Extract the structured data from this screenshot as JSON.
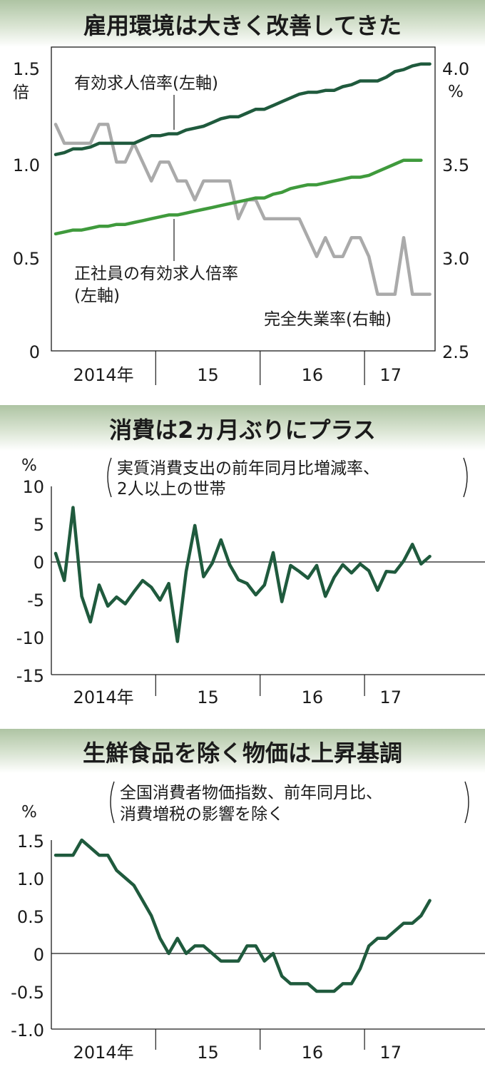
{
  "colors": {
    "dark_green": "#1f5a3d",
    "green": "#3f9a3c",
    "gray": "#aaaaaa",
    "header_bg": "#c9d7bf",
    "text": "#1b1b1b"
  },
  "chart_data": [
    {
      "type": "line",
      "title": "雇用環境は大きく改善してきた",
      "x_tick_labels": [
        "2014年",
        "15",
        "16",
        "17"
      ],
      "y_left": {
        "ticks": [
          "1.5",
          "1.0",
          "0.5",
          "0"
        ],
        "unit": "倍",
        "ylim": [
          0,
          1.5
        ]
      },
      "y_right": {
        "ticks": [
          "4.0",
          "3.5",
          "3.0",
          "2.5"
        ],
        "unit": "%",
        "ylim": [
          2.5,
          4.0
        ]
      },
      "x_start": "2014-01",
      "series": [
        {
          "name": "有効求人倍率(左軸)",
          "axis": "left",
          "values": [
            1.04,
            1.05,
            1.07,
            1.07,
            1.08,
            1.1,
            1.1,
            1.1,
            1.1,
            1.1,
            1.12,
            1.14,
            1.14,
            1.15,
            1.15,
            1.17,
            1.18,
            1.19,
            1.21,
            1.23,
            1.24,
            1.24,
            1.26,
            1.28,
            1.28,
            1.3,
            1.32,
            1.34,
            1.36,
            1.37,
            1.37,
            1.38,
            1.38,
            1.4,
            1.41,
            1.43,
            1.43,
            1.43,
            1.45,
            1.48,
            1.49,
            1.51,
            1.52,
            1.52
          ]
        },
        {
          "name": "正社員の有効求人倍率(左軸)",
          "axis": "left",
          "values": [
            0.62,
            0.63,
            0.64,
            0.64,
            0.65,
            0.66,
            0.66,
            0.67,
            0.67,
            0.68,
            0.69,
            0.7,
            0.71,
            0.72,
            0.72,
            0.73,
            0.74,
            0.75,
            0.76,
            0.77,
            0.78,
            0.79,
            0.8,
            0.81,
            0.81,
            0.83,
            0.84,
            0.86,
            0.87,
            0.88,
            0.88,
            0.89,
            0.9,
            0.91,
            0.92,
            0.92,
            0.93,
            0.95,
            0.97,
            0.99,
            1.01,
            1.01,
            1.01
          ]
        },
        {
          "name": "完全失業率(右軸)",
          "axis": "right",
          "values": [
            3.7,
            3.6,
            3.6,
            3.6,
            3.6,
            3.7,
            3.7,
            3.5,
            3.5,
            3.6,
            3.5,
            3.4,
            3.5,
            3.5,
            3.4,
            3.4,
            3.3,
            3.4,
            3.4,
            3.4,
            3.4,
            3.2,
            3.3,
            3.3,
            3.2,
            3.2,
            3.2,
            3.2,
            3.2,
            3.1,
            3.0,
            3.1,
            3.0,
            3.0,
            3.1,
            3.1,
            3.0,
            2.8,
            2.8,
            2.8,
            3.1,
            2.8,
            2.8,
            2.8
          ]
        }
      ]
    },
    {
      "type": "line",
      "title": "消費は2ヵ月ぶりにプラス",
      "note_lines": [
        "実質消費支出の前年同月比増減率、",
        "2人以上の世帯"
      ],
      "y_unit": "%",
      "y_ticks": [
        "10",
        "5",
        "0",
        "-5",
        "-10",
        "-15"
      ],
      "ylim": [
        -15,
        10
      ],
      "x_tick_labels": [
        "2014年",
        "15",
        "16",
        "17"
      ],
      "x_start": "2014-01",
      "series": [
        {
          "values": [
            1.1,
            -2.5,
            7.2,
            -4.6,
            -8.0,
            -3.1,
            -5.9,
            -4.7,
            -5.6,
            -4.0,
            -2.5,
            -3.4,
            -5.1,
            -2.9,
            -10.6,
            -1.3,
            4.8,
            -2.0,
            -0.2,
            2.9,
            -0.4,
            -2.4,
            -2.9,
            -4.4,
            -3.1,
            1.2,
            -5.3,
            -0.5,
            -1.3,
            -2.2,
            -0.5,
            -4.6,
            -2.1,
            -0.4,
            -1.5,
            -0.3,
            -1.2,
            -3.8,
            -1.3,
            -1.4,
            0.1,
            2.3,
            -0.3,
            0.7
          ]
        }
      ]
    },
    {
      "type": "line",
      "title": "生鮮食品を除く物価は上昇基調",
      "note_lines": [
        "全国消費者物価指数、前年同月比、",
        "消費増税の影響を除く"
      ],
      "y_unit": "%",
      "y_ticks": [
        "1.5",
        "1.0",
        "0.5",
        "0",
        "-0.5",
        "-1.0"
      ],
      "ylim": [
        -1.0,
        1.5
      ],
      "x_tick_labels": [
        "2014年",
        "15",
        "16",
        "17"
      ],
      "x_start": "2014-01",
      "series": [
        {
          "values": [
            1.3,
            1.3,
            1.3,
            1.5,
            1.4,
            1.3,
            1.3,
            1.1,
            1.0,
            0.9,
            0.7,
            0.5,
            0.2,
            0.0,
            0.2,
            0.0,
            0.1,
            0.1,
            0.0,
            -0.1,
            -0.1,
            -0.1,
            0.1,
            0.1,
            -0.1,
            0.0,
            -0.3,
            -0.4,
            -0.4,
            -0.4,
            -0.5,
            -0.5,
            -0.5,
            -0.4,
            -0.4,
            -0.2,
            0.1,
            0.2,
            0.2,
            0.3,
            0.4,
            0.4,
            0.5,
            0.7
          ]
        }
      ]
    }
  ]
}
